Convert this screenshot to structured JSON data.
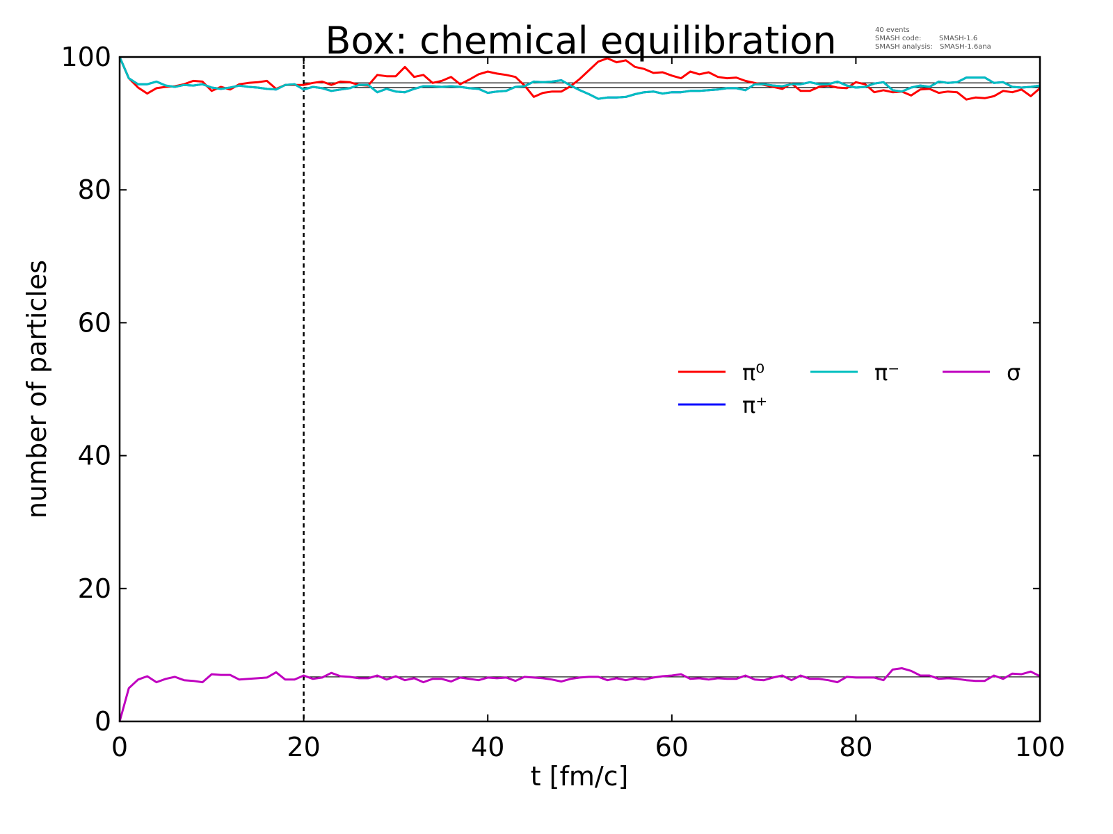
{
  "chart_data": {
    "type": "line",
    "title": "Box: chemical equilibration",
    "xlabel": "t [fm/c]",
    "ylabel": "number of particles",
    "xlim": [
      0,
      100
    ],
    "ylim": [
      0,
      100
    ],
    "xticks": [
      "0",
      "20",
      "40",
      "60",
      "80",
      "100"
    ],
    "yticks": [
      "0",
      "20",
      "40",
      "60",
      "80",
      "100"
    ],
    "grid": false,
    "legend_placement": "center-right",
    "t_start": 0,
    "t_step": 1,
    "vertical_marker_t": 20,
    "reference_levels": [
      96.1,
      95.4,
      6.7
    ],
    "annotation": {
      "line1": "40 events",
      "line2_label": "SMASH code:",
      "line2_value": "SMASH-1.6",
      "line3_label": "SMASH analysis:",
      "line3_value": "SMASH-1.6ana"
    },
    "series": [
      {
        "name": "π⁺",
        "color": "#0000ff",
        "values": [
          100,
          96.8,
          95.9,
          95.9,
          96.3,
          95.7,
          95.5,
          95.8,
          95.7,
          95.9,
          95.4,
          95.2,
          95.4,
          95.7,
          95.5,
          95.4,
          95.2,
          95.1,
          95.8,
          95.9,
          95.1,
          95.5,
          95.3,
          94.9,
          95.1,
          95.3,
          95.8,
          95.8,
          94.7,
          95.2,
          94.8,
          94.7,
          95.2,
          95.6,
          95.6,
          95.5,
          95.6,
          95.5,
          95.3,
          95.2,
          94.6,
          94.8,
          94.9,
          95.5,
          95.6,
          96.3,
          96.2,
          96.3,
          96.5,
          95.7,
          95.0,
          94.4,
          93.7,
          93.9,
          93.9,
          94.0,
          94.4,
          94.7,
          94.8,
          94.5,
          94.7,
          94.7,
          94.9,
          94.9,
          95.0,
          95.1,
          95.3,
          95.3,
          95.0,
          95.9,
          95.9,
          95.7,
          95.6,
          95.9,
          95.9,
          96.2,
          95.9,
          95.9,
          96.3,
          95.7,
          95.4,
          95.5,
          96.0,
          96.2,
          95.0,
          94.8,
          95.4,
          95.7,
          95.5,
          96.3,
          96.1,
          96.2,
          96.9,
          96.9,
          96.9,
          96.1,
          96.2,
          95.5,
          95.4,
          95.5,
          95.7
        ]
      },
      {
        "name": "π⁰",
        "color": "#ff0000",
        "values": [
          100,
          96.8,
          95.4,
          94.5,
          95.3,
          95.5,
          95.6,
          95.9,
          96.4,
          96.3,
          94.9,
          95.5,
          95.1,
          95.9,
          96.1,
          96.2,
          96.4,
          95.2,
          95.8,
          95.8,
          95.8,
          96.1,
          96.3,
          95.8,
          96.3,
          96.2,
          95.8,
          95.7,
          97.3,
          97.1,
          97.1,
          98.5,
          97.0,
          97.3,
          96.1,
          96.4,
          97.0,
          95.9,
          96.6,
          97.4,
          97.8,
          97.5,
          97.3,
          97.0,
          95.7,
          94.0,
          94.6,
          94.8,
          94.8,
          95.6,
          96.7,
          98.0,
          99.3,
          99.8,
          99.2,
          99.5,
          98.5,
          98.2,
          97.6,
          97.7,
          97.2,
          96.8,
          97.8,
          97.4,
          97.7,
          97.0,
          96.8,
          96.9,
          96.4,
          96.1,
          95.8,
          95.5,
          95.2,
          96.0,
          94.9,
          94.9,
          95.5,
          95.7,
          95.4,
          95.3,
          96.2,
          95.9,
          94.7,
          95.0,
          94.7,
          94.8,
          94.2,
          95.1,
          95.2,
          94.6,
          94.8,
          94.7,
          93.6,
          93.9,
          93.8,
          94.1,
          94.9,
          94.7,
          95.1,
          94.1,
          95.3
        ]
      },
      {
        "name": "π⁻",
        "color": "#00bfbf",
        "values": [
          100,
          96.8,
          95.9,
          95.9,
          96.3,
          95.7,
          95.5,
          95.8,
          95.7,
          95.9,
          95.4,
          95.2,
          95.4,
          95.7,
          95.5,
          95.4,
          95.2,
          95.1,
          95.8,
          95.9,
          95.1,
          95.5,
          95.3,
          94.9,
          95.1,
          95.3,
          95.8,
          95.8,
          94.7,
          95.2,
          94.8,
          94.7,
          95.2,
          95.6,
          95.6,
          95.5,
          95.6,
          95.5,
          95.3,
          95.2,
          94.6,
          94.8,
          94.9,
          95.5,
          95.6,
          96.3,
          96.2,
          96.3,
          96.5,
          95.7,
          95.0,
          94.4,
          93.7,
          93.9,
          93.9,
          94.0,
          94.4,
          94.7,
          94.8,
          94.5,
          94.7,
          94.7,
          94.9,
          94.9,
          95.0,
          95.1,
          95.3,
          95.3,
          95.0,
          95.9,
          95.9,
          95.7,
          95.6,
          95.9,
          95.9,
          96.2,
          95.9,
          95.9,
          96.3,
          95.7,
          95.4,
          95.5,
          96.0,
          96.2,
          95.0,
          94.8,
          95.4,
          95.7,
          95.5,
          96.3,
          96.1,
          96.2,
          96.9,
          96.9,
          96.9,
          96.1,
          96.2,
          95.5,
          95.4,
          95.5,
          95.7
        ]
      },
      {
        "name": "σ",
        "color": "#bf00bf",
        "values": [
          0,
          5.0,
          6.3,
          6.8,
          5.9,
          6.4,
          6.7,
          6.2,
          6.1,
          5.9,
          7.1,
          7.0,
          7.0,
          6.3,
          6.4,
          6.5,
          6.6,
          7.4,
          6.3,
          6.3,
          6.9,
          6.4,
          6.6,
          7.3,
          6.8,
          6.7,
          6.5,
          6.5,
          6.9,
          6.3,
          6.8,
          6.2,
          6.5,
          5.9,
          6.4,
          6.4,
          6.0,
          6.6,
          6.4,
          6.2,
          6.6,
          6.5,
          6.6,
          6.1,
          6.7,
          6.6,
          6.5,
          6.3,
          6.0,
          6.4,
          6.6,
          6.7,
          6.7,
          6.2,
          6.5,
          6.2,
          6.5,
          6.3,
          6.6,
          6.8,
          6.9,
          7.1,
          6.4,
          6.5,
          6.3,
          6.5,
          6.4,
          6.4,
          6.9,
          6.3,
          6.2,
          6.6,
          6.9,
          6.2,
          6.9,
          6.4,
          6.4,
          6.2,
          5.9,
          6.7,
          6.6,
          6.6,
          6.6,
          6.2,
          7.8,
          8.0,
          7.6,
          6.9,
          6.9,
          6.4,
          6.5,
          6.4,
          6.2,
          6.1,
          6.1,
          6.9,
          6.4,
          7.2,
          7.1,
          7.5,
          6.8
        ]
      }
    ],
    "legend": [
      {
        "label": "π⁰",
        "color": "#ff0000"
      },
      {
        "label": "π⁺",
        "color": "#0000ff"
      },
      {
        "label": "π⁻",
        "color": "#00bfbf"
      },
      {
        "label": "σ",
        "color": "#bf00bf"
      }
    ]
  }
}
